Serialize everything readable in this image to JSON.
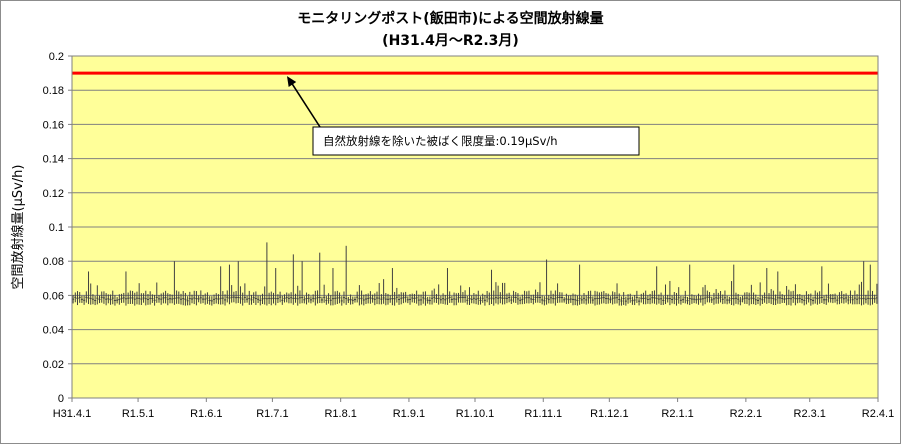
{
  "chart_data": {
    "type": "line",
    "title": "モニタリングポスト(飯田市)による空間放射線量",
    "subtitle": "(H31.4月〜R2.3月)",
    "ylabel": "空間放射線量(μSv/h)",
    "xlabel": "",
    "ylim": [
      0,
      0.2
    ],
    "yticks": [
      "0",
      "0.02",
      "0.04",
      "0.06",
      "0.08",
      "0.1",
      "0.12",
      "0.14",
      "0.16",
      "0.18",
      "0.2"
    ],
    "x_tick_labels": [
      "H31.4.1",
      "R1.5.1",
      "R1.6.1",
      "R1.7.1",
      "R1.8.1",
      "R1.9.1",
      "R1.10.1",
      "R1.11.1",
      "R1.12.1",
      "R2.1.1",
      "R2.2.1",
      "R2.3.1",
      "R2.4.1"
    ],
    "x_tick_days": [
      0,
      30,
      61,
      91,
      122,
      153,
      183,
      214,
      244,
      275,
      306,
      335,
      366
    ],
    "grid": true,
    "plot_background": "#ffff99",
    "series": [
      {
        "type": "hline",
        "value": 0.19,
        "color": "#ff0000",
        "label": "自然放射線を除いた被ばく限度量:0.19μSv/h"
      },
      {
        "type": "daily_range",
        "color": "#404040",
        "typical_min": 0.054,
        "typical_max": 0.062,
        "peak_days": [
          7,
          24,
          46,
          67,
          71,
          75,
          88,
          92,
          100,
          104,
          112,
          118,
          124,
          145,
          170,
          190,
          215,
          230,
          265,
          280,
          300,
          315,
          320,
          340,
          359,
          362
        ],
        "peak_values": [
          0.074,
          0.074,
          0.08,
          0.077,
          0.078,
          0.08,
          0.091,
          0.076,
          0.084,
          0.08,
          0.085,
          0.076,
          0.089,
          0.076,
          0.076,
          0.075,
          0.081,
          0.078,
          0.077,
          0.078,
          0.078,
          0.076,
          0.074,
          0.077,
          0.08,
          0.078
        ]
      }
    ]
  }
}
